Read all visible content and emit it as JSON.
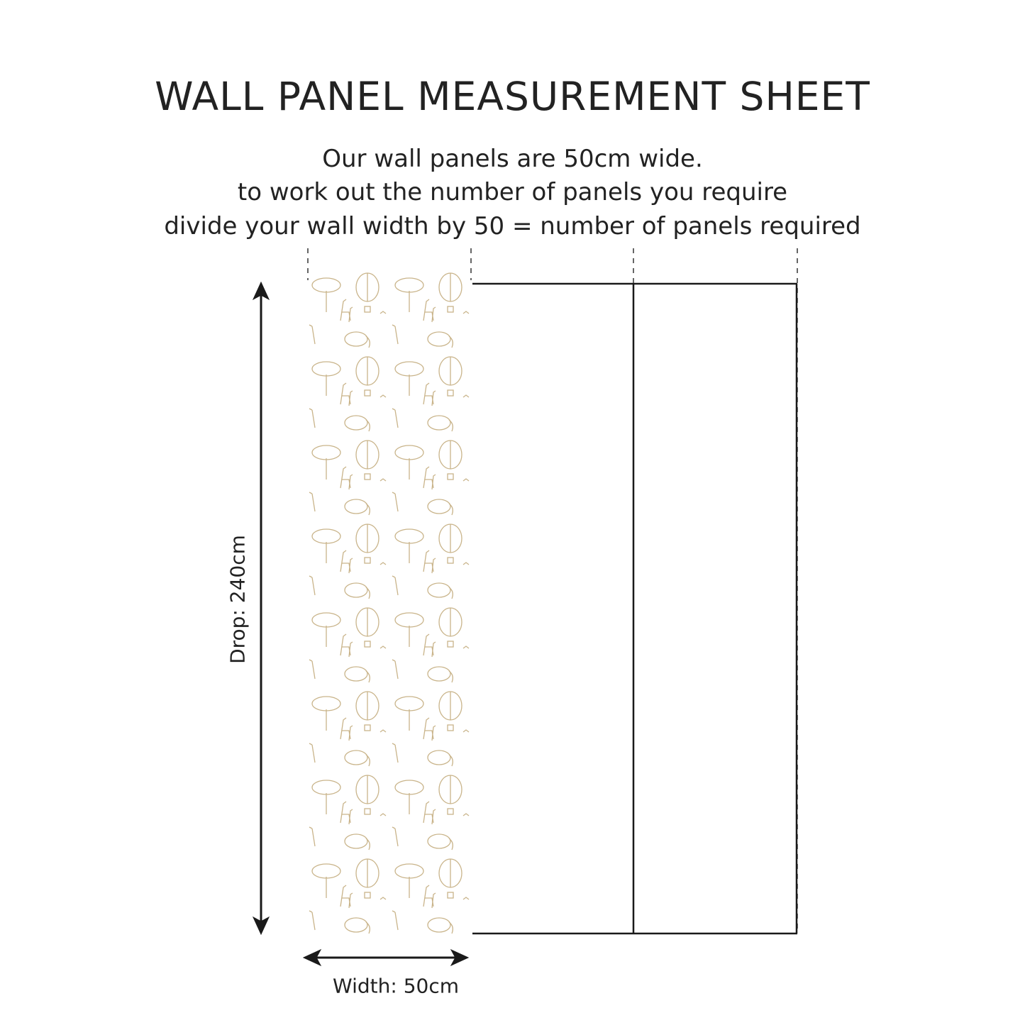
{
  "title": "WALL PANEL MEASUREMENT SHEET",
  "instructions": [
    "Our wall panels are 50cm wide.",
    "to work out the number of panels you require",
    "divide your wall width by 50 = number of panels required"
  ],
  "drop_label": "Drop: 240cm",
  "width_label": "Width: 50cm",
  "panel_pattern": "safari toile: balloons, trees, giraffes, elephants",
  "colors": {
    "pattern": "#c9b48a",
    "lines": "#1a1a1a"
  }
}
